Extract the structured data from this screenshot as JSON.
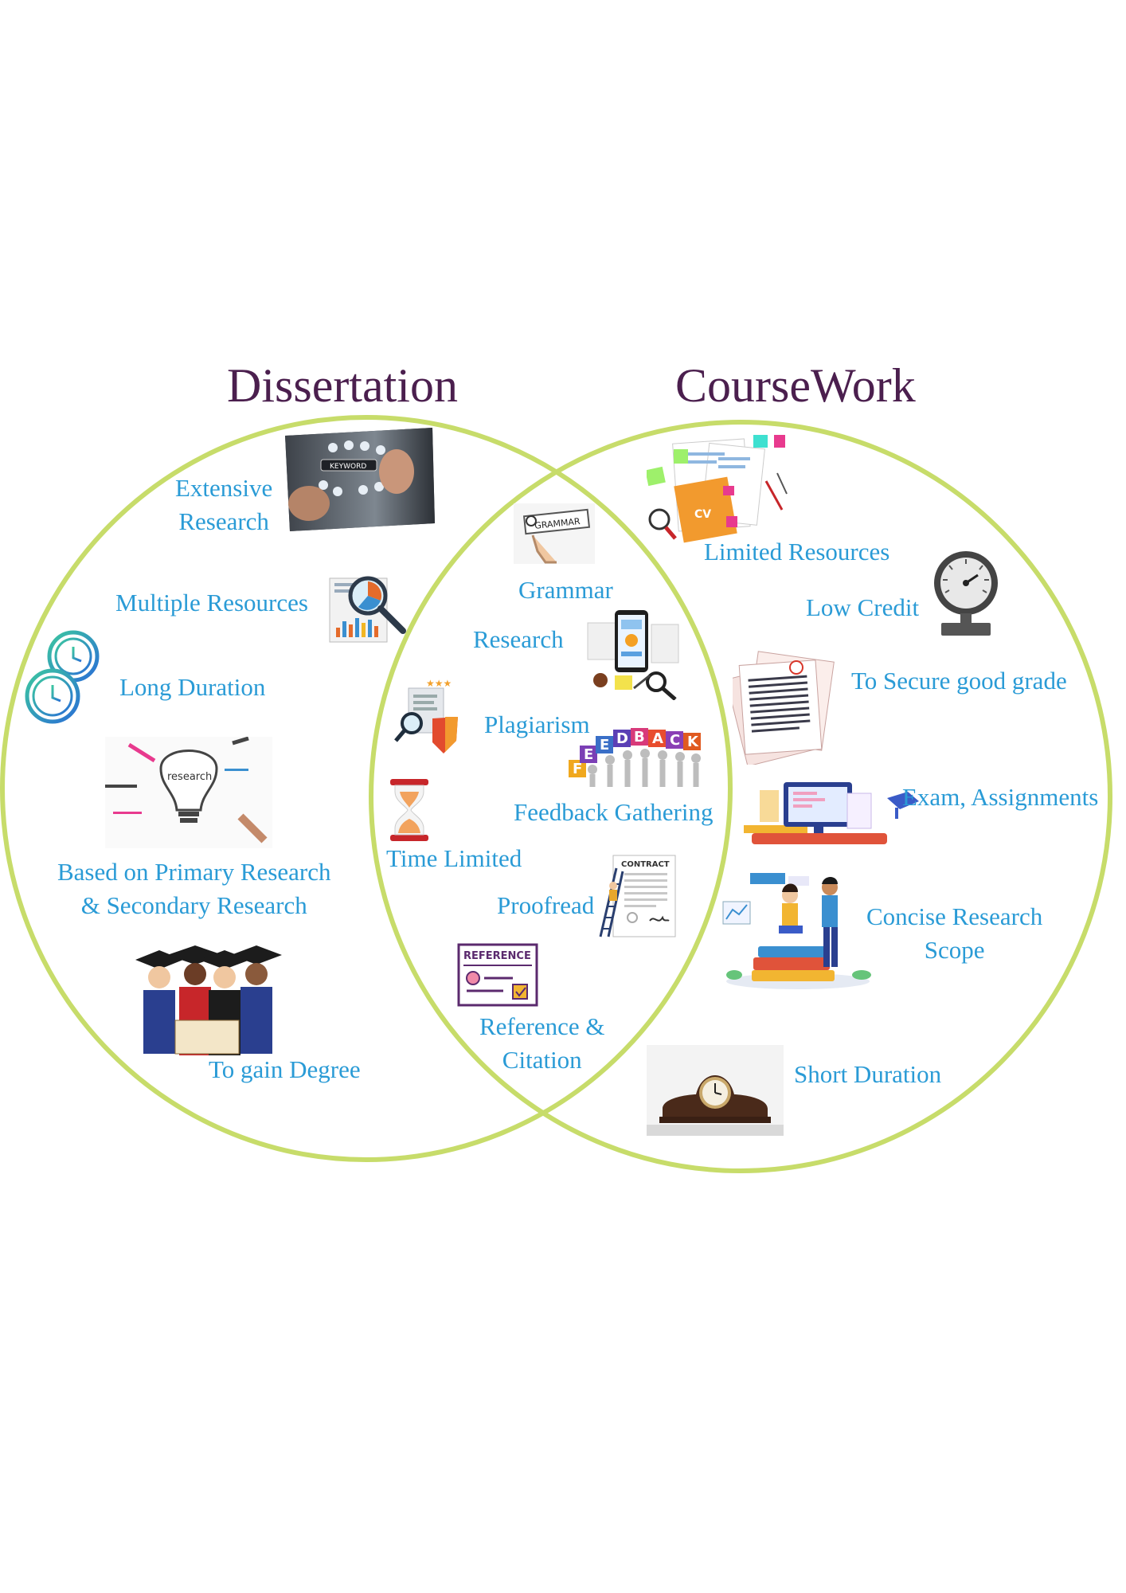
{
  "titles": {
    "left": "Dissertation",
    "right": "CourseWork"
  },
  "colors": {
    "circle": "#c7dc6a",
    "title": "#4b1f4e",
    "label": "#2a9bd6"
  },
  "dissertation": {
    "extensive_research": [
      "Extensive",
      "Research"
    ],
    "multiple_resources": "Multiple Resources",
    "long_duration": "Long Duration",
    "primary_secondary": [
      "Based on Primary Research",
      "& Secondary Research"
    ],
    "gain_degree": "To gain Degree"
  },
  "common": {
    "grammar": "Grammar",
    "research": "Research",
    "plagiarism": "Plagiarism",
    "feedback_gathering": "Feedback Gathering",
    "time_limited": "Time Limited",
    "proofread": "Proofread",
    "reference_citation": [
      "Reference &",
      "Citation"
    ]
  },
  "coursework": {
    "limited_resources": "Limited Resources",
    "low_credit": "Low Credit",
    "good_grade": "To Secure good grade",
    "exam_assignments": "Exam, Assignments",
    "concise_scope": [
      "Concise Research",
      "Scope"
    ],
    "short_duration": "Short Duration"
  },
  "image_text": {
    "keyword": "KEYWORD",
    "grammar_tag": "GRAMMAR",
    "cv": "CV",
    "feedback": [
      "F",
      "E",
      "E",
      "D",
      "B",
      "A",
      "C",
      "K"
    ],
    "research_bulb": "research",
    "contract": "CONTRACT",
    "reference": "REFERENCE"
  },
  "icons": [
    "keyword-photo",
    "magnifier-chart-icon",
    "clock-icon",
    "research-bulb-icon",
    "graduates-icon",
    "grammar-icon",
    "analytics-phone-icon",
    "plagiarism-shield-icon",
    "feedback-letters-icon",
    "hourglass-icon",
    "contract-ladder-icon",
    "reference-card-icon",
    "cv-documents-icon",
    "pressure-gauge-icon",
    "graded-papers-icon",
    "laptop-desk-icon",
    "students-books-icon",
    "mantel-clock-icon"
  ]
}
